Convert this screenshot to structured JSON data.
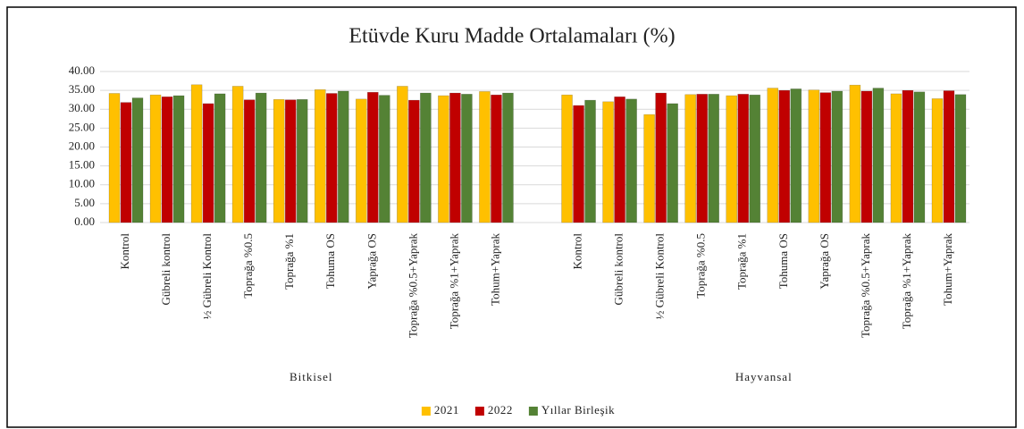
{
  "chart_data": {
    "type": "bar",
    "title": "Etüvde Kuru Madde Ortalamaları (%)",
    "categories": [
      "Kontrol",
      "Gübreli kontrol",
      "½ Gübreli Kontrol",
      "Toprağa %0.5",
      "Toprağa %1",
      "Tohuma OS",
      "Yaprağa OS",
      "Toprağa %0.5+Yaprak",
      "Toprağa %1+Yaprak",
      "Tohum+Yaprak",
      null,
      "Kontrol",
      "Gübreli kontrol",
      "½ Gübreli Kontrol",
      "Toprağa %0.5",
      "Toprağa %1",
      "Tohuma OS",
      "Yaprağa OS",
      "Toprağa %0.5+Yaprak",
      "Toprağa %1+Yaprak",
      "Tohum+Yaprak"
    ],
    "group_labels": [
      "Bitkisel",
      "Hayvansal"
    ],
    "series": [
      {
        "name": "2021",
        "color": "#ffc000",
        "values": [
          34.2,
          33.8,
          36.5,
          36.1,
          32.6,
          35.2,
          32.7,
          36.1,
          33.6,
          34.7,
          null,
          33.8,
          32.0,
          28.6,
          33.9,
          33.6,
          35.6,
          35.1,
          36.4,
          34.1,
          32.8
        ]
      },
      {
        "name": "2022",
        "color": "#c00000",
        "values": [
          31.8,
          33.3,
          31.5,
          32.5,
          32.5,
          34.2,
          34.5,
          32.4,
          34.3,
          33.8,
          null,
          31.0,
          33.3,
          34.3,
          34.0,
          34.0,
          35.0,
          34.4,
          34.8,
          35.0,
          34.9
        ]
      },
      {
        "name": "Yıllar Birleşik",
        "color": "#548235",
        "values": [
          33.0,
          33.6,
          34.1,
          34.3,
          32.6,
          34.8,
          33.7,
          34.3,
          34.0,
          34.3,
          null,
          32.4,
          32.7,
          31.5,
          34.0,
          33.8,
          35.4,
          34.8,
          35.6,
          34.6,
          33.9
        ]
      }
    ],
    "ylim": [
      0,
      40
    ],
    "yticks": [
      {
        "value": 0,
        "label": "0.00"
      },
      {
        "value": 5,
        "label": "5.00"
      },
      {
        "value": 10,
        "label": "10.00"
      },
      {
        "value": 15,
        "label": "15.00"
      },
      {
        "value": 20,
        "label": "20.00"
      },
      {
        "value": 25,
        "label": "25.00"
      },
      {
        "value": 30,
        "label": "30.00"
      },
      {
        "value": 35,
        "label": "35.00"
      },
      {
        "value": 40,
        "label": "40.00"
      }
    ],
    "grid": true,
    "legend": "bottom"
  }
}
